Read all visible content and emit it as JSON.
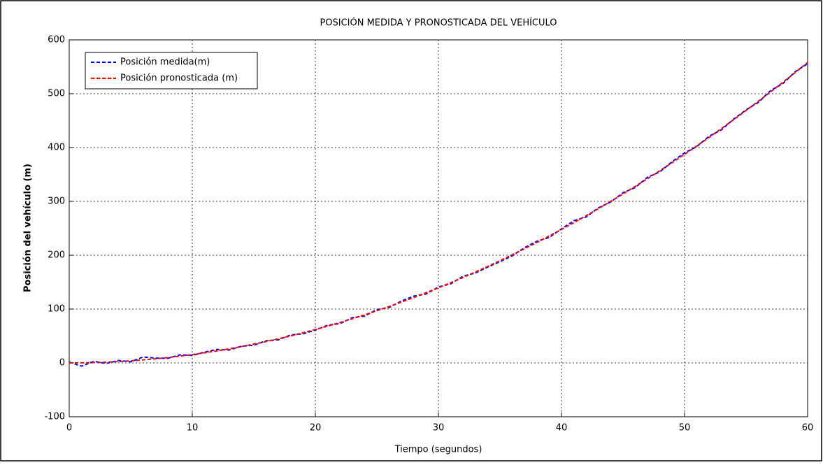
{
  "chart_data": {
    "type": "line",
    "title": "POSICIÓN MEDIDA Y PRONOSTICADA DEL VEHÍCULO",
    "x_label": "Tiempo (segundos)",
    "y_label": "Posición del vehículo (m)",
    "x": [
      0,
      1,
      2,
      3,
      4,
      5,
      6,
      7,
      8,
      9,
      10,
      11,
      12,
      13,
      14,
      15,
      16,
      17,
      18,
      19,
      20,
      21,
      22,
      23,
      24,
      25,
      26,
      27,
      28,
      29,
      30,
      31,
      32,
      33,
      34,
      35,
      36,
      37,
      38,
      39,
      40,
      41,
      42,
      43,
      44,
      45,
      46,
      47,
      48,
      49,
      50,
      51,
      52,
      53,
      54,
      55,
      56,
      57,
      58,
      59,
      60
    ],
    "series": [
      {
        "name": "Posición medida(m)",
        "color": "#0000ff",
        "values": [
          1.5,
          -6,
          2.8,
          -1,
          4.5,
          2,
          11,
          9,
          8.5,
          15,
          14,
          20,
          25,
          24,
          31,
          33,
          41,
          43,
          52,
          54,
          61,
          70,
          73,
          84,
          87,
          99,
          103,
          115,
          124,
          128,
          141,
          147,
          161,
          167,
          178,
          188,
          199,
          214,
          226,
          233,
          249,
          264,
          271,
          288,
          299,
          316,
          326,
          345,
          355,
          374,
          390,
          402,
          421,
          433,
          453,
          470,
          484,
          506,
          519,
          541,
          556
        ]
      },
      {
        "name": "Posición pronosticada (m)",
        "color": "#ff0000",
        "values": [
          0,
          0.2,
          0.6,
          1.4,
          2.5,
          3.9,
          5.6,
          7.6,
          9.9,
          12.6,
          15.5,
          18.8,
          22.3,
          26.2,
          30.4,
          34.9,
          39.7,
          44.8,
          50.2,
          56,
          62,
          68.4,
          75,
          82,
          89.3,
          96.9,
          104.8,
          113,
          121.5,
          130.4,
          139.5,
          149,
          158.7,
          168.8,
          179.2,
          189.9,
          200.9,
          212.2,
          223.8,
          235.8,
          248,
          260.6,
          273.4,
          286.6,
          300.1,
          313.9,
          328,
          342.4,
          357.1,
          372.2,
          387.5,
          403.2,
          419.1,
          435.4,
          452,
          468.9,
          486.1,
          503.6,
          521.4,
          539.6,
          558
        ]
      }
    ],
    "xlim": [
      0,
      60
    ],
    "xticks": [
      0,
      10,
      20,
      30,
      40,
      50,
      60
    ],
    "ylim": [
      -100,
      600
    ],
    "yticks": [
      -100,
      0,
      100,
      200,
      300,
      400,
      500,
      600
    ],
    "grid": true,
    "legend": "northwest"
  }
}
